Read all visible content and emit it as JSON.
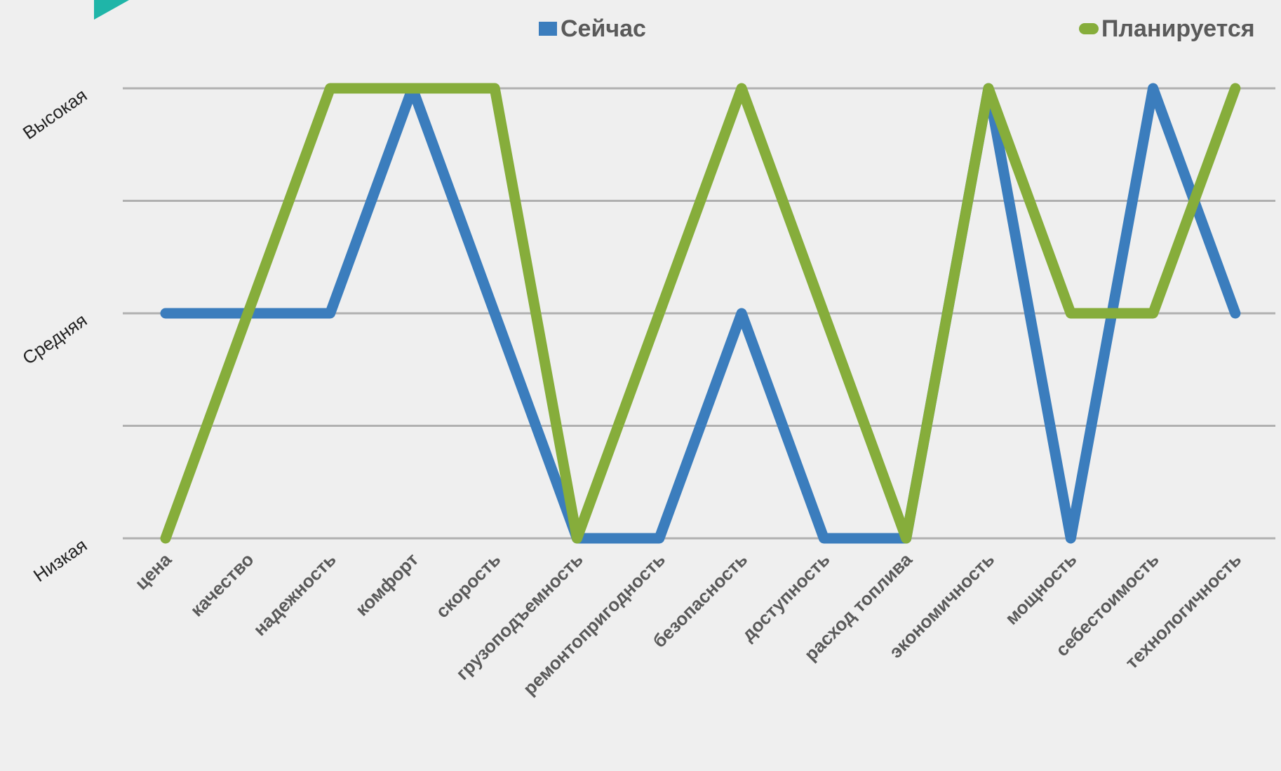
{
  "chart_data": {
    "type": "line",
    "title": "",
    "xlabel": "",
    "ylabel": "",
    "categories": [
      "цена",
      "качество",
      "надежность",
      "комфорт",
      "скорость",
      "грузоподъемность",
      "ремонтопригодность",
      "безопасность",
      "доступность",
      "расход топлива",
      "экономичность",
      "мощность",
      "себестоимость",
      "технологичность"
    ],
    "y_ticks": [
      {
        "value": 1,
        "label": "Низкая"
      },
      {
        "value": 2,
        "label": "Средняя"
      },
      {
        "value": 3,
        "label": "Высокая"
      }
    ],
    "ylim": [
      1,
      3
    ],
    "grid": true,
    "legend_position": "top",
    "series": [
      {
        "name": "Сейчас",
        "color": "#3b7dbd",
        "values": [
          2,
          2,
          2,
          3,
          2,
          1,
          1,
          2,
          1,
          1,
          3,
          1,
          3,
          2
        ]
      },
      {
        "name": "Планируется",
        "color": "#86ad3b",
        "values": [
          1,
          2,
          3,
          3,
          3,
          1,
          2,
          3,
          2,
          1,
          3,
          2,
          2,
          3
        ]
      }
    ]
  },
  "decor": {
    "corner_accent_color": "#1fb5a8"
  }
}
